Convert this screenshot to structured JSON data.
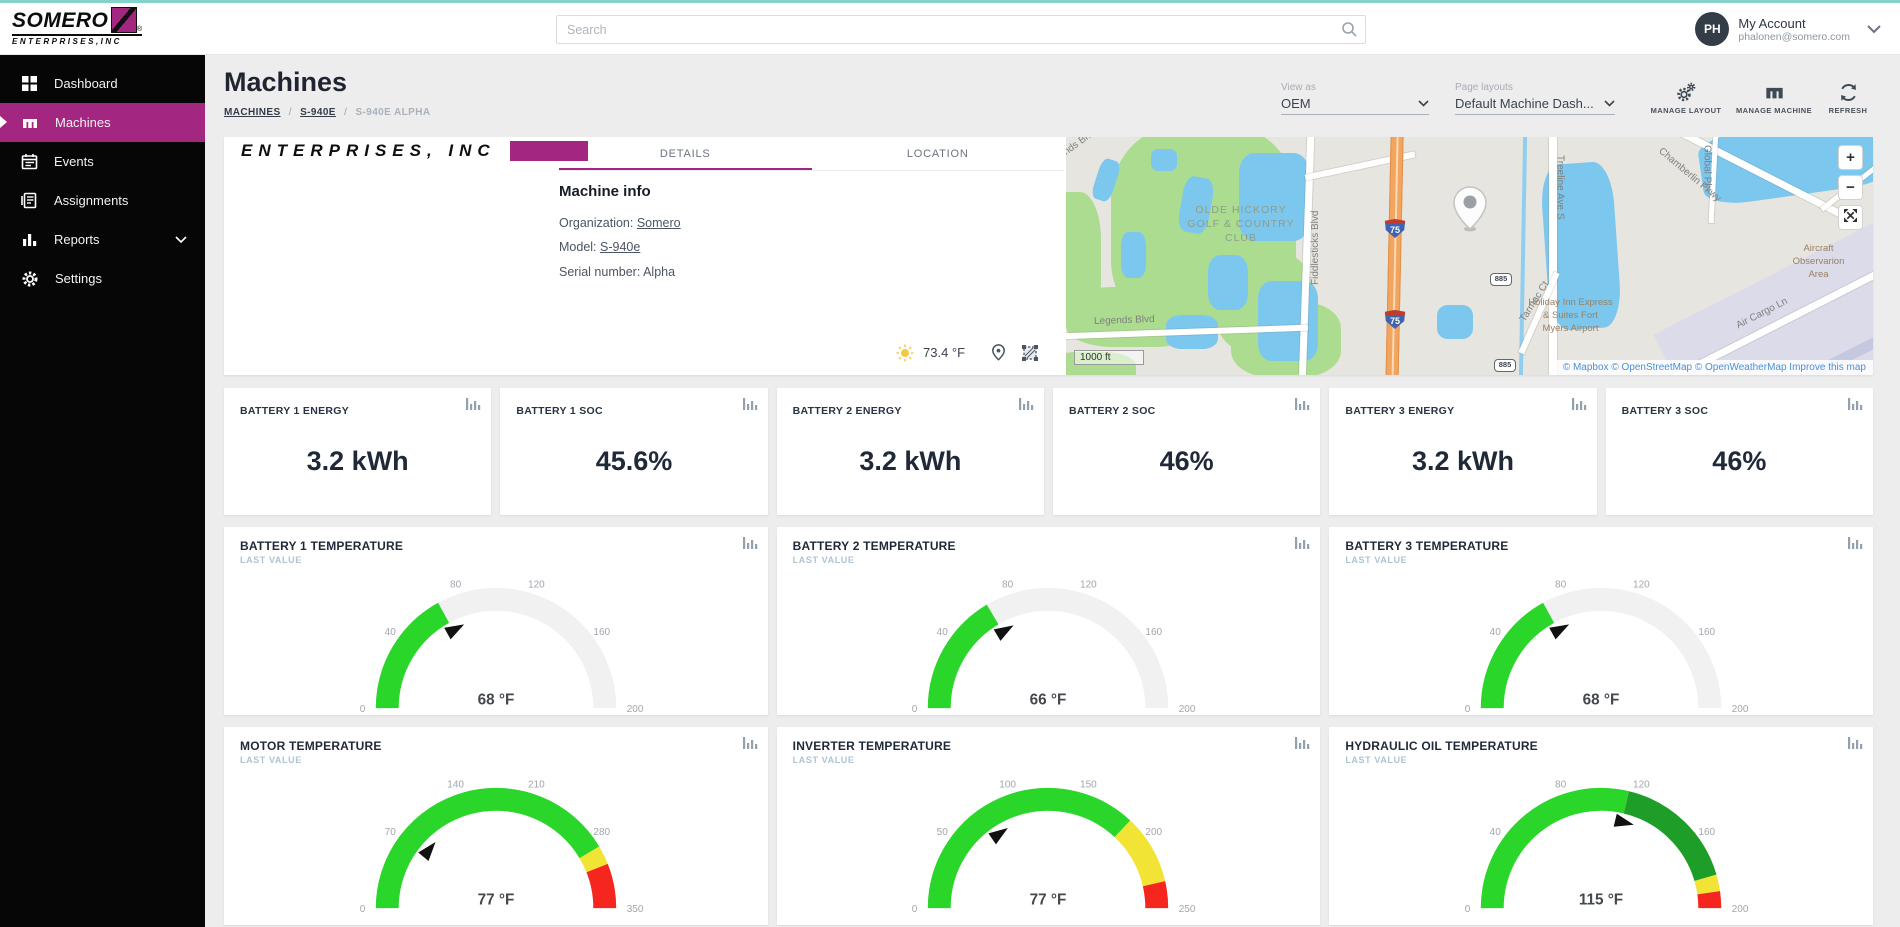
{
  "accent": "#A32681",
  "topbar": {
    "logo": {
      "brand": "SOMERO",
      "sub": "ENTERPRISES,INC"
    },
    "search": {
      "placeholder": "Search"
    },
    "account": {
      "initials": "PH",
      "name": "My Account",
      "email": "phalonen@somero.com"
    }
  },
  "sidebar": {
    "items": [
      {
        "label": "Dashboard"
      },
      {
        "label": "Machines"
      },
      {
        "label": "Events"
      },
      {
        "label": "Assignments"
      },
      {
        "label": "Reports"
      },
      {
        "label": "Settings"
      }
    ]
  },
  "header": {
    "title": "Machines",
    "breadcrumb": [
      {
        "label": "MACHINES"
      },
      {
        "label": "S-940E"
      },
      {
        "label": "S-940E ALPHA"
      }
    ],
    "view_as": {
      "label": "View as",
      "value": "OEM"
    },
    "page_layouts": {
      "label": "Page layouts",
      "value": "Default Machine Dash..."
    },
    "buttons": {
      "manage_layout": "MANAGE LAYOUT",
      "manage_machine": "MANAGE MACHINE",
      "refresh": "REFRESH"
    }
  },
  "details": {
    "logo_sub": "ENTERPRISES, INC",
    "tabs": [
      {
        "label": "DETAILS"
      },
      {
        "label": "LOCATION"
      }
    ],
    "section_title": "Machine info",
    "fields": [
      {
        "label": "Organization:",
        "value": "Somero"
      },
      {
        "label": "Model:",
        "value": "S-940e"
      },
      {
        "label": "Serial number:",
        "value": "Alpha"
      }
    ],
    "weather": {
      "temp": "73.4 °F"
    }
  },
  "map": {
    "labels": {
      "golf": "OLDE HICKORY\nGOLF & COUNTRY\nCLUB",
      "legends": "Legends Blvd",
      "legends_n": "Legends Blvd N",
      "fiddlesticks": "Fiddlesticks Blvd",
      "treeline": "Treeline Ave S",
      "tarmac": "Tarmac Ct",
      "chamberlin": "Chamberlin Pkwy",
      "air_cargo": "Air Cargo Ln",
      "holiday_inn": "Holiday Inn Express\n& Suites Fort\nMyers Airport",
      "aircraft": "Aircraft\nObservarion\nArea",
      "global": "Global Pl"
    },
    "shields": {
      "interstate": "75",
      "route": "885"
    },
    "scale": "1000 ft",
    "attribution": "© Mapbox © OpenStreetMap © OpenWeatherMap Improve this map",
    "controls": {
      "zoom_in": "+",
      "zoom_out": "−"
    }
  },
  "stats": [
    {
      "label": "BATTERY 1 ENERGY",
      "value": "3.2 kWh"
    },
    {
      "label": "BATTERY 1 SOC",
      "value": "45.6%"
    },
    {
      "label": "BATTERY 2 ENERGY",
      "value": "3.2 kWh"
    },
    {
      "label": "BATTERY 2 SOC",
      "value": "46%"
    },
    {
      "label": "BATTERY 3 ENERGY",
      "value": "3.2 kWh"
    },
    {
      "label": "BATTERY 3 SOC",
      "value": "46%"
    }
  ],
  "chart_data": [
    {
      "type": "gauge",
      "title": "BATTERY 1 TEMPERATURE",
      "subtitle": "LAST VALUE",
      "min": 0,
      "max": 200,
      "ticks": [
        0,
        40,
        80,
        120,
        160,
        200
      ],
      "value": 68,
      "value_label": "68 °F",
      "track": "#F1F1F1",
      "segments": [
        {
          "from": 0,
          "to": 68,
          "color": "#2BD62B"
        }
      ]
    },
    {
      "type": "gauge",
      "title": "BATTERY 2 TEMPERATURE",
      "subtitle": "LAST VALUE",
      "min": 0,
      "max": 200,
      "ticks": [
        0,
        40,
        80,
        120,
        160,
        200
      ],
      "value": 66,
      "value_label": "66 °F",
      "track": "#F1F1F1",
      "segments": [
        {
          "from": 0,
          "to": 66,
          "color": "#2BD62B"
        }
      ]
    },
    {
      "type": "gauge",
      "title": "BATTERY 3 TEMPERATURE",
      "subtitle": "LAST VALUE",
      "min": 0,
      "max": 200,
      "ticks": [
        0,
        40,
        80,
        120,
        160,
        200
      ],
      "value": 68,
      "value_label": "68 °F",
      "track": "#F1F1F1",
      "segments": [
        {
          "from": 0,
          "to": 68,
          "color": "#2BD62B"
        }
      ]
    },
    {
      "type": "gauge",
      "title": "MOTOR TEMPERATURE",
      "subtitle": "LAST VALUE",
      "min": 0,
      "max": 350,
      "ticks": [
        0,
        70,
        140,
        210,
        280,
        350
      ],
      "value": 77,
      "value_label": "77 °F",
      "track": "#F1F1F1",
      "segments": [
        {
          "from": 0,
          "to": 290,
          "color": "#2BD62B"
        },
        {
          "from": 290,
          "to": 308,
          "color": "#F2E434"
        },
        {
          "from": 308,
          "to": 350,
          "color": "#F4261D"
        }
      ]
    },
    {
      "type": "gauge",
      "title": "INVERTER TEMPERATURE",
      "subtitle": "LAST VALUE",
      "min": 0,
      "max": 250,
      "ticks": [
        0,
        50,
        100,
        150,
        200,
        250
      ],
      "value": 77,
      "value_label": "77 °F",
      "track": "#F1F1F1",
      "segments": [
        {
          "from": 0,
          "to": 185,
          "color": "#2BD62B"
        },
        {
          "from": 185,
          "to": 232,
          "color": "#F2E434"
        },
        {
          "from": 232,
          "to": 250,
          "color": "#F4261D"
        }
      ]
    },
    {
      "type": "gauge",
      "title": "HYDRAULIC OIL TEMPERATURE",
      "subtitle": "LAST VALUE",
      "min": 0,
      "max": 200,
      "ticks": [
        0,
        40,
        80,
        120,
        160,
        200
      ],
      "value": 115,
      "value_label": "115 °F",
      "track": "#F1F1F1",
      "segments": [
        {
          "from": 0,
          "to": 115,
          "color": "#2BD62B"
        },
        {
          "from": 115,
          "to": 182,
          "color": "#1E9E28"
        },
        {
          "from": 182,
          "to": 191,
          "color": "#F2E434"
        },
        {
          "from": 191,
          "to": 200,
          "color": "#F4261D"
        }
      ]
    }
  ]
}
